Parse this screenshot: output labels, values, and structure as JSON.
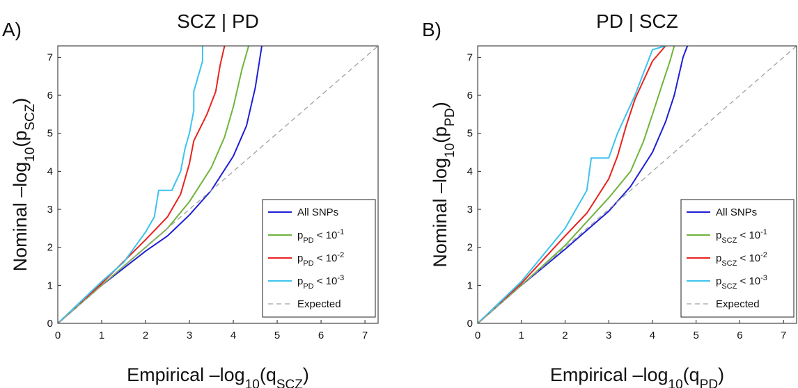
{
  "chart_data": [
    {
      "type": "line",
      "panel_label": "A)",
      "title": "SCZ | PD",
      "xlabel": [
        {
          "text": "Empirical –log"
        },
        {
          "text": "10",
          "style": "sub"
        },
        {
          "text": "(q"
        },
        {
          "text": "SCZ",
          "style": "sub"
        },
        {
          "text": ")"
        }
      ],
      "ylabel": [
        {
          "text": "Nominal –log"
        },
        {
          "text": "10",
          "style": "sub"
        },
        {
          "text": "(p"
        },
        {
          "text": "SCZ",
          "style": "sub"
        },
        {
          "text": ")"
        }
      ],
      "xlim": [
        0,
        7.3
      ],
      "ylim": [
        0,
        7.3
      ],
      "xticks": [
        0,
        1,
        2,
        3,
        4,
        5,
        6,
        7
      ],
      "yticks": [
        0,
        1,
        2,
        3,
        4,
        5,
        6,
        7
      ],
      "legend": "lower right",
      "series": [
        {
          "name": [
            {
              "text": "All SNPs"
            }
          ],
          "color": "#1f1fd6",
          "x": [
            0,
            1,
            2,
            2.5,
            3,
            3.5,
            4,
            4.3,
            4.5,
            4.65
          ],
          "values": [
            0,
            1,
            1.9,
            2.3,
            2.85,
            3.5,
            4.4,
            5.2,
            6.2,
            7.3
          ]
        },
        {
          "name": [
            {
              "text": "p"
            },
            {
              "text": "PD",
              "style": "sub"
            },
            {
              "text": " < 10"
            },
            {
              "text": "-1",
              "style": "sup"
            }
          ],
          "color": "#6fb43a",
          "x": [
            0,
            1,
            2,
            2.5,
            3,
            3.5,
            3.8,
            4.0,
            4.2,
            4.35
          ],
          "values": [
            0,
            1,
            2,
            2.5,
            3.2,
            4.1,
            4.9,
            5.7,
            6.7,
            7.3
          ]
        },
        {
          "name": [
            {
              "text": "p"
            },
            {
              "text": "PD",
              "style": "sub"
            },
            {
              "text": " < 10"
            },
            {
              "text": "-2",
              "style": "sup"
            }
          ],
          "color": "#e8231f",
          "x": [
            0,
            1,
            2,
            2.5,
            2.8,
            3.0,
            3.1,
            3.4,
            3.6,
            3.7,
            3.8
          ],
          "values": [
            0,
            1.05,
            2.2,
            2.8,
            3.4,
            4.2,
            4.8,
            5.5,
            6.1,
            6.8,
            7.3
          ]
        },
        {
          "name": [
            {
              "text": "p"
            },
            {
              "text": "PD",
              "style": "sub"
            },
            {
              "text": " < 10"
            },
            {
              "text": "-3",
              "style": "sup"
            }
          ],
          "color": "#3cc3ee",
          "x": [
            0,
            1,
            1.5,
            2,
            2.2,
            2.3,
            2.6,
            2.8,
            2.9,
            3.0,
            3.1,
            3.1,
            3.2,
            3.3,
            3.3
          ],
          "values": [
            0,
            1.1,
            1.6,
            2.4,
            2.8,
            3.5,
            3.5,
            4.0,
            4.6,
            5.0,
            5.6,
            6.1,
            6.5,
            6.9,
            7.3
          ]
        },
        {
          "name": [
            {
              "text": "Expected"
            }
          ],
          "color": "#a0a0a0",
          "dashed": true,
          "x": [
            0,
            7.3
          ],
          "values": [
            0,
            7.3
          ]
        }
      ]
    },
    {
      "type": "line",
      "panel_label": "B)",
      "title": "PD | SCZ",
      "xlabel": [
        {
          "text": "Empirical –log"
        },
        {
          "text": "10",
          "style": "sub"
        },
        {
          "text": "(q"
        },
        {
          "text": "PD",
          "style": "sub"
        },
        {
          "text": ")"
        }
      ],
      "ylabel": [
        {
          "text": "Nominal –log"
        },
        {
          "text": "10",
          "style": "sub"
        },
        {
          "text": "(p"
        },
        {
          "text": "PD",
          "style": "sub"
        },
        {
          "text": ")"
        }
      ],
      "xlim": [
        0,
        7.3
      ],
      "ylim": [
        0,
        7.3
      ],
      "xticks": [
        0,
        1,
        2,
        3,
        4,
        5,
        6,
        7
      ],
      "yticks": [
        0,
        1,
        2,
        3,
        4,
        5,
        6,
        7
      ],
      "legend": "lower right",
      "series": [
        {
          "name": [
            {
              "text": "All SNPs"
            }
          ],
          "color": "#1f1fd6",
          "x": [
            0,
            1,
            2,
            3,
            3.5,
            4,
            4.3,
            4.5,
            4.7,
            4.8
          ],
          "values": [
            0,
            1,
            1.95,
            2.95,
            3.6,
            4.5,
            5.3,
            6.0,
            7.0,
            7.3
          ]
        },
        {
          "name": [
            {
              "text": "p"
            },
            {
              "text": "SCZ",
              "style": "sub"
            },
            {
              "text": " < 10"
            },
            {
              "text": "-1",
              "style": "sup"
            }
          ],
          "color": "#6fb43a",
          "x": [
            0,
            1,
            2,
            3,
            3.5,
            3.8,
            4.0,
            4.2,
            4.4,
            4.5
          ],
          "values": [
            0,
            1,
            2.05,
            3.3,
            4.0,
            4.8,
            5.5,
            6.2,
            6.9,
            7.3
          ]
        },
        {
          "name": [
            {
              "text": "p"
            },
            {
              "text": "SCZ",
              "style": "sub"
            },
            {
              "text": " < 10"
            },
            {
              "text": "-2",
              "style": "sup"
            }
          ],
          "color": "#e8231f",
          "x": [
            0,
            1,
            2,
            2.5,
            3,
            3.2,
            3.4,
            3.6,
            3.8,
            4.0,
            4.3
          ],
          "values": [
            0,
            1.05,
            2.3,
            2.9,
            3.8,
            4.4,
            5.2,
            5.9,
            6.4,
            6.9,
            7.3
          ]
        },
        {
          "name": [
            {
              "text": "p"
            },
            {
              "text": "SCZ",
              "style": "sub"
            },
            {
              "text": " < 10"
            },
            {
              "text": "-3",
              "style": "sup"
            }
          ],
          "color": "#3cc3ee",
          "x": [
            0,
            1,
            2,
            2.5,
            2.6,
            3.0,
            3.2,
            3.4,
            3.6,
            3.8,
            4.0,
            4.3
          ],
          "values": [
            0,
            1.1,
            2.5,
            3.5,
            4.35,
            4.35,
            5.0,
            5.5,
            6.0,
            6.6,
            7.2,
            7.3
          ]
        },
        {
          "name": [
            {
              "text": "Expected"
            }
          ],
          "color": "#a0a0a0",
          "dashed": true,
          "x": [
            0,
            7.3
          ],
          "values": [
            0,
            7.3
          ]
        }
      ]
    }
  ]
}
